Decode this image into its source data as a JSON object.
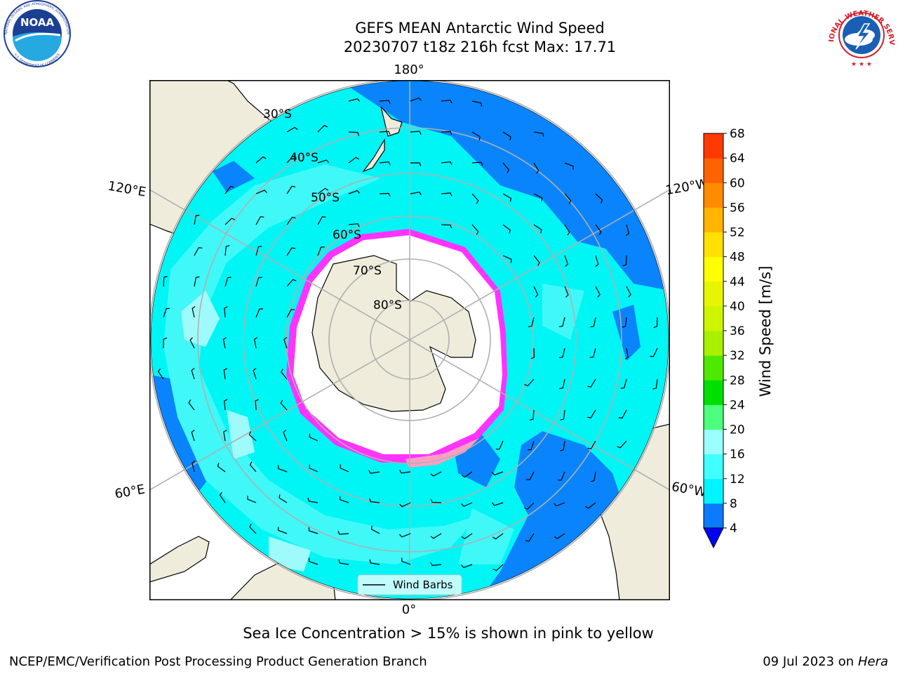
{
  "title": {
    "line1": "GEFS MEAN Antarctic Wind Speed",
    "line2": "20230707 t18z 216h fcst   Max: 17.71"
  },
  "logos": {
    "left": {
      "icon": "noaa-logo",
      "text": "NOAA",
      "ring_text": "NATIONAL OCEANIC AND ATMOSPHERIC ADMINISTRATION",
      "bottom_text": "U.S. DEPARTMENT OF COMMERCE"
    },
    "right": {
      "icon": "nws-logo",
      "ring_text": "NATIONAL WEATHER SERVICE"
    }
  },
  "map": {
    "projection": "south polar stereographic",
    "lon_labels": {
      "top": "180°",
      "bottom": "0°",
      "left_upper": "120°E",
      "left_lower": "60°E",
      "right_upper": "120°W",
      "right_lower": "60°W"
    },
    "lat_labels": [
      "30°S",
      "40°S",
      "50°S",
      "60°S",
      "70°S",
      "80°S"
    ],
    "legend": {
      "label": "Wind Barbs"
    },
    "colors": {
      "land": "#efecdc",
      "ocean_4_8": "#0a84fc",
      "ocean_8_12": "#00f5f5",
      "ocean_12_16": "#40f8f8",
      "ocean_16_20": "#9ffbfb",
      "sea_ice": "#ff33ff",
      "ice_shelf": "#ffffff"
    }
  },
  "colorbar": {
    "label": "Wind Speed [m/s]",
    "ticks": [
      "4",
      "8",
      "12",
      "16",
      "20",
      "24",
      "28",
      "32",
      "36",
      "40",
      "44",
      "48",
      "52",
      "56",
      "60",
      "64",
      "68"
    ],
    "colors": [
      "#0a7bfa",
      "#00f5ff",
      "#40ffff",
      "#9cffff",
      "#4cff7c",
      "#00e000",
      "#4fe800",
      "#a8f000",
      "#cdf500",
      "#e8f500",
      "#ffff00",
      "#ffe000",
      "#ffb400",
      "#ff8c00",
      "#ff6200",
      "#ff3a00",
      "#ff0000"
    ],
    "extend_color": "#0000ff"
  },
  "caption": "Sea Ice Concentration > 15% is shown in pink to yellow",
  "footer": {
    "left": "NCEP/EMC/Verification Post Processing Product Generation Branch",
    "right_prefix": "09 Jul 2023 on ",
    "right_host": "Hera"
  }
}
